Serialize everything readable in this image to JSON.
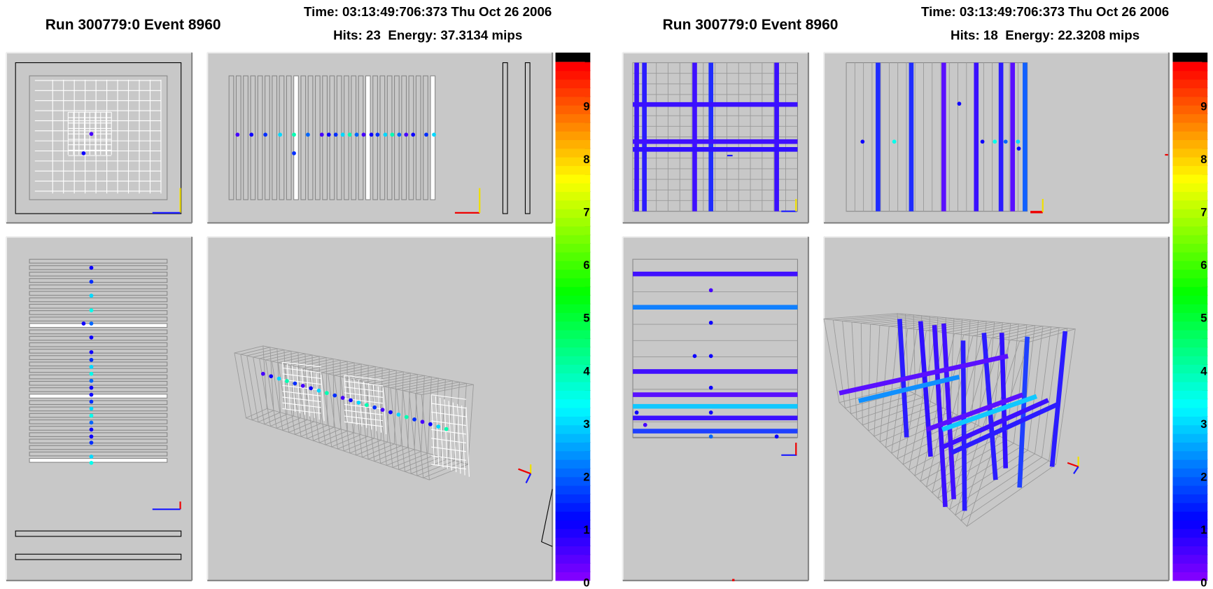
{
  "displays": [
    {
      "title": "Run 300779:0 Event 8960",
      "time": "Time: 03:13:49:706:373 Thu Oct 26 2006",
      "summary": "Hits: 23  Energy: 37.3134 mips",
      "scale_labels": [
        0,
        1,
        2,
        3,
        4,
        5,
        6,
        7,
        8,
        9
      ]
    },
    {
      "title": "Run 300779:0 Event 8960",
      "time": "Time: 03:13:49:706:373 Thu Oct 26 2006",
      "summary": "Hits: 18  Energy: 22.3208 mips",
      "scale_labels": [
        0,
        1,
        2,
        3,
        4,
        5,
        6,
        7,
        8,
        9
      ]
    }
  ]
}
